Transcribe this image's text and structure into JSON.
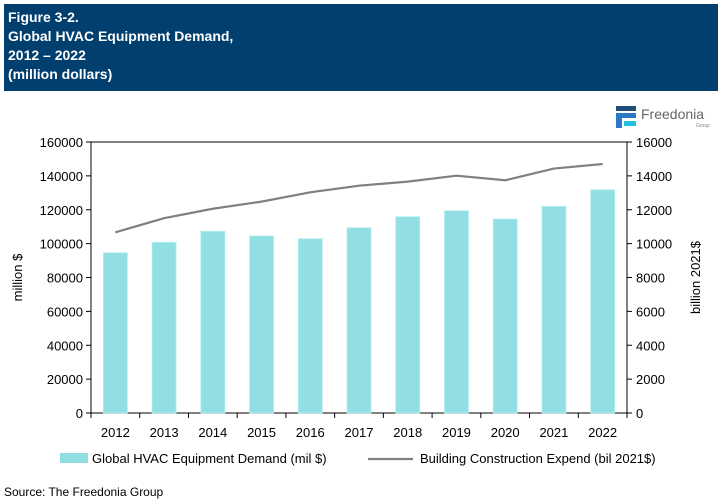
{
  "header": {
    "figure": "Figure 3-2.",
    "title": "Global HVAC Equipment Demand,",
    "years": "2012 – 2022",
    "units": "(million dollars)"
  },
  "logo": {
    "name": "Freedonia",
    "sub": "Group"
  },
  "source": "Source: The Freedonia Group",
  "chart_data": {
    "type": "bar",
    "categories": [
      "2012",
      "2013",
      "2014",
      "2015",
      "2016",
      "2017",
      "2018",
      "2019",
      "2020",
      "2021",
      "2022"
    ],
    "series": [
      {
        "name": "Global HVAC Equipment Demand (mil $)",
        "type": "bar",
        "axis": "left",
        "color": "#92dfe3",
        "values": [
          94600,
          100800,
          107300,
          104500,
          102900,
          109400,
          115900,
          119400,
          114500,
          122000,
          131800
        ]
      },
      {
        "name": "Building Construction Expend (bil 2021$)",
        "type": "line",
        "axis": "right",
        "color": "#808080",
        "values": [
          10670,
          11500,
          12060,
          12480,
          13030,
          13420,
          13660,
          14010,
          13740,
          14430,
          14700
        ]
      }
    ],
    "ylabel": "million $",
    "y2label": "billion 2021$",
    "ylim": [
      0,
      160000
    ],
    "y2lim": [
      0,
      16000
    ],
    "yticks": [
      "0",
      "20000",
      "40000",
      "60000",
      "80000",
      "100000",
      "120000",
      "140000",
      "160000"
    ],
    "y2ticks": [
      "0",
      "2000",
      "4000",
      "6000",
      "8000",
      "10000",
      "12000",
      "14000",
      "16000"
    ],
    "grid": false,
    "legend": "bottom"
  }
}
